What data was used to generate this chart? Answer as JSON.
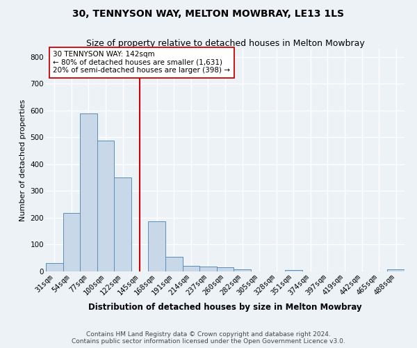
{
  "title": "30, TENNYSON WAY, MELTON MOWBRAY, LE13 1LS",
  "subtitle": "Size of property relative to detached houses in Melton Mowbray",
  "xlabel": "Distribution of detached houses by size in Melton Mowbray",
  "ylabel": "Number of detached properties",
  "bar_labels": [
    "31sqm",
    "54sqm",
    "77sqm",
    "100sqm",
    "122sqm",
    "145sqm",
    "168sqm",
    "191sqm",
    "214sqm",
    "237sqm",
    "260sqm",
    "282sqm",
    "305sqm",
    "328sqm",
    "351sqm",
    "374sqm",
    "397sqm",
    "419sqm",
    "442sqm",
    "465sqm",
    "488sqm"
  ],
  "bar_values": [
    32,
    218,
    590,
    488,
    350,
    0,
    188,
    55,
    20,
    17,
    15,
    8,
    0,
    0,
    5,
    0,
    0,
    0,
    0,
    0,
    8
  ],
  "bar_color": "#c8d8e8",
  "bar_edge_color": "#5b8db8",
  "vline_x": 5,
  "vline_color": "#cc0000",
  "annotation_text": "30 TENNYSON WAY: 142sqm\n← 80% of detached houses are smaller (1,631)\n20% of semi-detached houses are larger (398) →",
  "annotation_box_color": "#ffffff",
  "annotation_box_edge": "#cc0000",
  "ylim": [
    0,
    830
  ],
  "yticks": [
    0,
    100,
    200,
    300,
    400,
    500,
    600,
    700,
    800
  ],
  "footer_line1": "Contains HM Land Registry data © Crown copyright and database right 2024.",
  "footer_line2": "Contains public sector information licensed under the Open Government Licence v3.0.",
  "bg_color": "#edf2f7",
  "grid_color": "#ffffff",
  "title_fontsize": 10,
  "subtitle_fontsize": 9,
  "tick_fontsize": 7.5,
  "label_fontsize": 8.5,
  "ylabel_fontsize": 8
}
